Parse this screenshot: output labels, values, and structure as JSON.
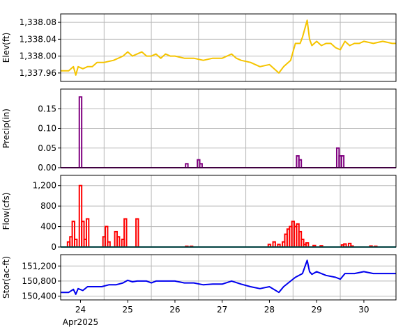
{
  "chart_data": [
    {
      "type": "line",
      "ylabel": "Elev(ft)",
      "color": "#f5c400",
      "ylim": [
        1337.94,
        1338.1
      ],
      "yticks": [
        1337.96,
        1338.0,
        1338.04,
        1338.08
      ],
      "ytick_labels": [
        "1,337.96",
        "1,338.00",
        "1,338.04",
        "1,338.08"
      ],
      "x": [
        23.58,
        23.75,
        23.85,
        23.9,
        23.95,
        24.05,
        24.15,
        24.25,
        24.35,
        24.5,
        24.7,
        24.9,
        25.0,
        25.1,
        25.2,
        25.3,
        25.4,
        25.5,
        25.6,
        25.7,
        25.8,
        25.9,
        26.0,
        26.2,
        26.4,
        26.6,
        26.8,
        27.0,
        27.2,
        27.3,
        27.4,
        27.6,
        27.8,
        28.0,
        28.2,
        28.3,
        28.45,
        28.55,
        28.65,
        28.7,
        28.8,
        28.85,
        28.9,
        29.0,
        29.1,
        29.2,
        29.3,
        29.4,
        29.5,
        29.6,
        29.7,
        29.8,
        29.9,
        30.0,
        30.2,
        30.4,
        30.6,
        30.68
      ],
      "y": [
        1337.965,
        1337.965,
        1337.975,
        1337.955,
        1337.975,
        1337.97,
        1337.975,
        1337.975,
        1337.985,
        1337.985,
        1337.99,
        1338.0,
        1338.01,
        1338.0,
        1338.005,
        1338.01,
        1338.0,
        1338.0,
        1338.005,
        1337.995,
        1338.005,
        1338.0,
        1338.0,
        1337.995,
        1337.995,
        1337.99,
        1337.995,
        1337.995,
        1338.005,
        1337.995,
        1337.99,
        1337.985,
        1337.975,
        1337.98,
        1337.96,
        1337.975,
        1337.99,
        1338.03,
        1338.03,
        1338.045,
        1338.085,
        1338.04,
        1338.025,
        1338.035,
        1338.025,
        1338.03,
        1338.03,
        1338.02,
        1338.015,
        1338.035,
        1338.025,
        1338.03,
        1338.03,
        1338.035,
        1338.03,
        1338.035,
        1338.03,
        1338.03
      ]
    },
    {
      "type": "bar",
      "ylabel": "Precip(in)",
      "color": "#800080",
      "ylim": [
        0,
        0.2
      ],
      "yticks": [
        0.0,
        0.05,
        0.1,
        0.15
      ],
      "ytick_labels": [
        "0.00",
        "0.05",
        "0.10",
        "0.15"
      ],
      "x": [
        24.0,
        26.25,
        26.5,
        26.55,
        28.6,
        28.65,
        29.45,
        29.5,
        29.55
      ],
      "values": [
        0.18,
        0.01,
        0.02,
        0.01,
        0.03,
        0.02,
        0.05,
        0.03,
        0.03
      ]
    },
    {
      "type": "bar",
      "ylabel": "Flow(cfs)",
      "color": "#ff0000",
      "ylim": [
        0,
        1400
      ],
      "yticks": [
        0,
        400,
        800,
        1200
      ],
      "ytick_labels": [
        "0",
        "400",
        "800",
        "1,200"
      ],
      "baseline_color": "#008080",
      "x": [
        23.75,
        23.8,
        23.85,
        23.9,
        23.95,
        24.0,
        24.05,
        24.1,
        24.15,
        24.2,
        24.3,
        24.5,
        24.55,
        24.6,
        24.65,
        24.75,
        24.8,
        24.85,
        24.9,
        24.95,
        25.0,
        25.05,
        25.2,
        26.25,
        26.35,
        28.0,
        28.1,
        28.2,
        28.3,
        28.35,
        28.4,
        28.45,
        28.5,
        28.55,
        28.6,
        28.65,
        28.7,
        28.75,
        28.8,
        28.95,
        29.1,
        29.55,
        29.6,
        29.7,
        29.75,
        30.15,
        30.25
      ],
      "values": [
        100,
        200,
        500,
        150,
        0,
        1200,
        500,
        150,
        550,
        0,
        0,
        200,
        400,
        100,
        0,
        300,
        200,
        0,
        150,
        550,
        0,
        0,
        550,
        15,
        15,
        50,
        100,
        50,
        100,
        250,
        350,
        400,
        500,
        400,
        450,
        300,
        150,
        50,
        80,
        30,
        25,
        40,
        60,
        70,
        20,
        20,
        15
      ]
    },
    {
      "type": "line",
      "ylabel": "Stor(ac-ft)",
      "color": "#0000ee",
      "ylim": [
        150300,
        151500
      ],
      "yticks": [
        150400,
        150800,
        151200
      ],
      "ytick_labels": [
        "150,400",
        "150,800",
        "151,200"
      ],
      "x": [
        23.58,
        23.75,
        23.85,
        23.9,
        23.95,
        24.05,
        24.15,
        24.3,
        24.45,
        24.6,
        24.75,
        24.9,
        25.0,
        25.1,
        25.2,
        25.4,
        25.5,
        25.6,
        25.8,
        26.0,
        26.2,
        26.4,
        26.6,
        26.8,
        27.0,
        27.2,
        27.4,
        27.6,
        27.8,
        28.0,
        28.2,
        28.3,
        28.45,
        28.55,
        28.7,
        28.8,
        28.85,
        28.9,
        29.0,
        29.2,
        29.4,
        29.5,
        29.6,
        29.8,
        30.0,
        30.2,
        30.4,
        30.68
      ],
      "y": [
        150500,
        150500,
        150580,
        150450,
        150600,
        150550,
        150650,
        150650,
        150650,
        150700,
        150700,
        150750,
        150820,
        150780,
        150800,
        150800,
        150750,
        150800,
        150800,
        150800,
        150750,
        150750,
        150700,
        150720,
        150720,
        150800,
        150720,
        150650,
        150600,
        150650,
        150500,
        150650,
        150800,
        150900,
        151000,
        151350,
        151050,
        150980,
        151050,
        150950,
        150900,
        150850,
        151000,
        151000,
        151050,
        151000,
        151000,
        151000
      ]
    }
  ],
  "x_ticks": {
    "values": [
      24,
      25,
      26,
      27,
      28,
      29,
      30
    ],
    "labels": [
      "24",
      "25",
      "26",
      "27",
      "28",
      "29",
      "30"
    ],
    "month_label": "Apr2025"
  }
}
